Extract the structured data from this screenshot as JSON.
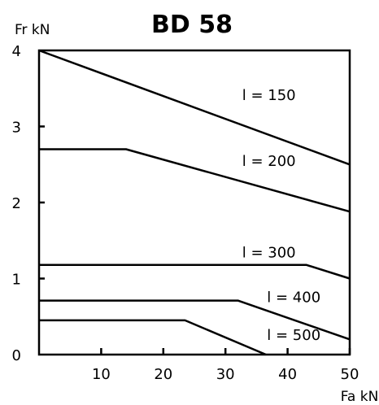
{
  "chart_data": {
    "type": "line",
    "title": "BD 58",
    "xlabel": "Fa kN",
    "ylabel": "Fr kN",
    "xlim": [
      0,
      50
    ],
    "ylim": [
      0,
      4
    ],
    "x_ticks": [
      10,
      20,
      30,
      40,
      50
    ],
    "x_tick_labels": [
      "10",
      "20",
      "30",
      "40",
      "50"
    ],
    "y_ticks": [
      0,
      1,
      2,
      3,
      4
    ],
    "y_tick_labels": [
      "0",
      "1",
      "2",
      "3",
      "4"
    ],
    "grid": false,
    "legend": "none",
    "series": [
      {
        "name": "l = 150",
        "points": [
          [
            0,
            4.0
          ],
          [
            50,
            2.5
          ]
        ]
      },
      {
        "name": "l = 200",
        "points": [
          [
            0,
            2.7
          ],
          [
            14,
            2.7
          ],
          [
            50,
            1.88
          ]
        ]
      },
      {
        "name": "l = 300",
        "points": [
          [
            0,
            1.18
          ],
          [
            43,
            1.18
          ],
          [
            50,
            1.0
          ]
        ]
      },
      {
        "name": "l = 400",
        "points": [
          [
            0,
            0.71
          ],
          [
            32,
            0.71
          ],
          [
            50,
            0.2
          ]
        ]
      },
      {
        "name": "l = 500",
        "points": [
          [
            0,
            0.45
          ],
          [
            23.5,
            0.45
          ],
          [
            36.5,
            0.0
          ]
        ]
      }
    ],
    "labels": [
      {
        "text": "l = 150",
        "x": 37,
        "y": 3.35
      },
      {
        "text": "l = 200",
        "x": 37,
        "y": 2.48
      },
      {
        "text": "l = 300",
        "x": 37,
        "y": 1.28
      },
      {
        "text": "l = 400",
        "x": 41,
        "y": 0.69
      },
      {
        "text": "l = 500",
        "x": 41,
        "y": 0.19
      }
    ]
  }
}
